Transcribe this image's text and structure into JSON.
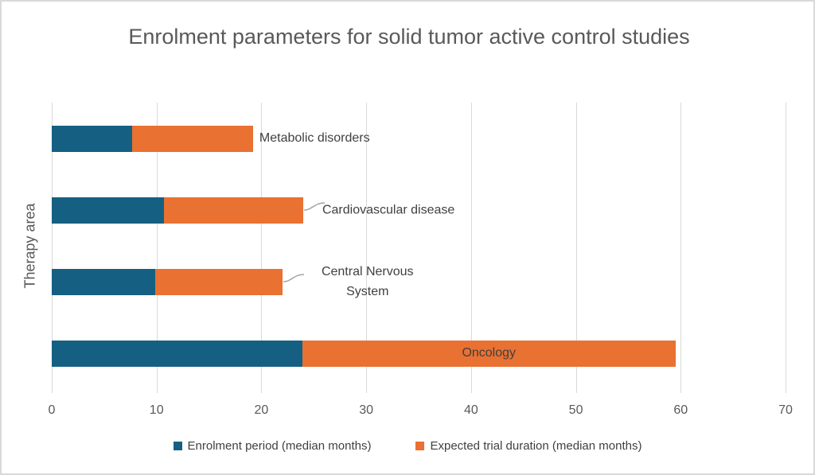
{
  "chart_data": {
    "type": "bar",
    "orientation": "horizontal",
    "stacked": true,
    "title": "Enrolment parameters for solid tumor active control studies",
    "xlabel": "",
    "ylabel": "Therapy area",
    "categories": [
      "Metabolic disorders",
      "Cardiovascular disease",
      "Central Nervous System",
      "Oncology"
    ],
    "series": [
      {
        "name": "Enrolment period (median months)",
        "color": "#156082",
        "values": [
          7.7,
          10.7,
          9.9,
          23.9
        ]
      },
      {
        "name": "Expected trial duration (median months)",
        "color": "#E97132",
        "values": [
          11.5,
          13.3,
          12.1,
          35.6
        ]
      }
    ],
    "stacked_totals": [
      19.2,
      24.0,
      22.0,
      59.5
    ],
    "xlim": [
      0,
      70
    ],
    "x_ticks": [
      0,
      10,
      20,
      30,
      40,
      50,
      60,
      70
    ],
    "grid": "vertical",
    "legend_position": "bottom",
    "layout": {
      "label_placement": [
        "right",
        "right-leader",
        "right-leader",
        "inside"
      ],
      "leader_color": "#a6a6a6",
      "gridline_color": "#d9d9d9",
      "text_color": "#404040",
      "axis_text_color": "#595959"
    }
  }
}
